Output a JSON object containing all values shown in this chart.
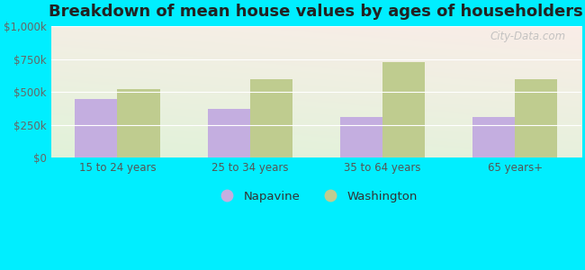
{
  "title": "Breakdown of mean house values by ages of householders",
  "categories": [
    "15 to 24 years",
    "25 to 34 years",
    "35 to 64 years",
    "65 years+"
  ],
  "napavine": [
    450000,
    370000,
    310000,
    310000
  ],
  "washington": [
    520000,
    600000,
    730000,
    600000
  ],
  "napavine_color": "#c4aee0",
  "washington_color": "#bfcc8f",
  "ylim": [
    0,
    1000000
  ],
  "yticks": [
    0,
    250000,
    500000,
    750000,
    1000000
  ],
  "ytick_labels": [
    "$0",
    "$250k",
    "$500k",
    "$750k",
    "$1,000k"
  ],
  "legend_napavine": "Napavine",
  "legend_washington": "Washington",
  "background_outer": "#00eeff",
  "title_fontsize": 13,
  "tick_fontsize": 8.5,
  "legend_fontsize": 9.5,
  "watermark": "City-Data.com",
  "bar_width": 0.32
}
